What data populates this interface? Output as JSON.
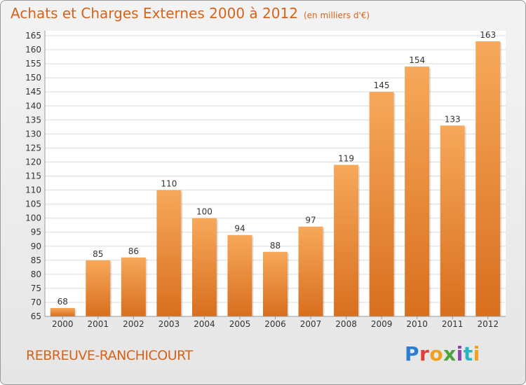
{
  "title": "Achats et Charges Externes 2000 à 2012",
  "unit": "(en milliers d'€)",
  "commune": "REBREUVE-RANCHICOURT",
  "logo_text": "Proxiti",
  "colors": {
    "accent": "#d5641b",
    "bar_light": "#f7a85a",
    "bar_dark": "#d86f1f"
  },
  "chart_data": {
    "type": "bar",
    "title": "Achats et Charges Externes 2000 à 2012",
    "subtitle": "(en milliers d'€)",
    "categories": [
      "2000",
      "2001",
      "2002",
      "2003",
      "2004",
      "2005",
      "2006",
      "2007",
      "2008",
      "2009",
      "2010",
      "2011",
      "2012"
    ],
    "values": [
      68,
      85,
      86,
      110,
      100,
      94,
      88,
      97,
      119,
      145,
      154,
      133,
      163
    ],
    "ylim": [
      65,
      165
    ],
    "yticks": [
      65,
      70,
      75,
      80,
      85,
      90,
      95,
      100,
      105,
      110,
      115,
      120,
      125,
      130,
      135,
      140,
      145,
      150,
      155,
      160,
      165
    ],
    "grid": true,
    "data_labels": true
  }
}
